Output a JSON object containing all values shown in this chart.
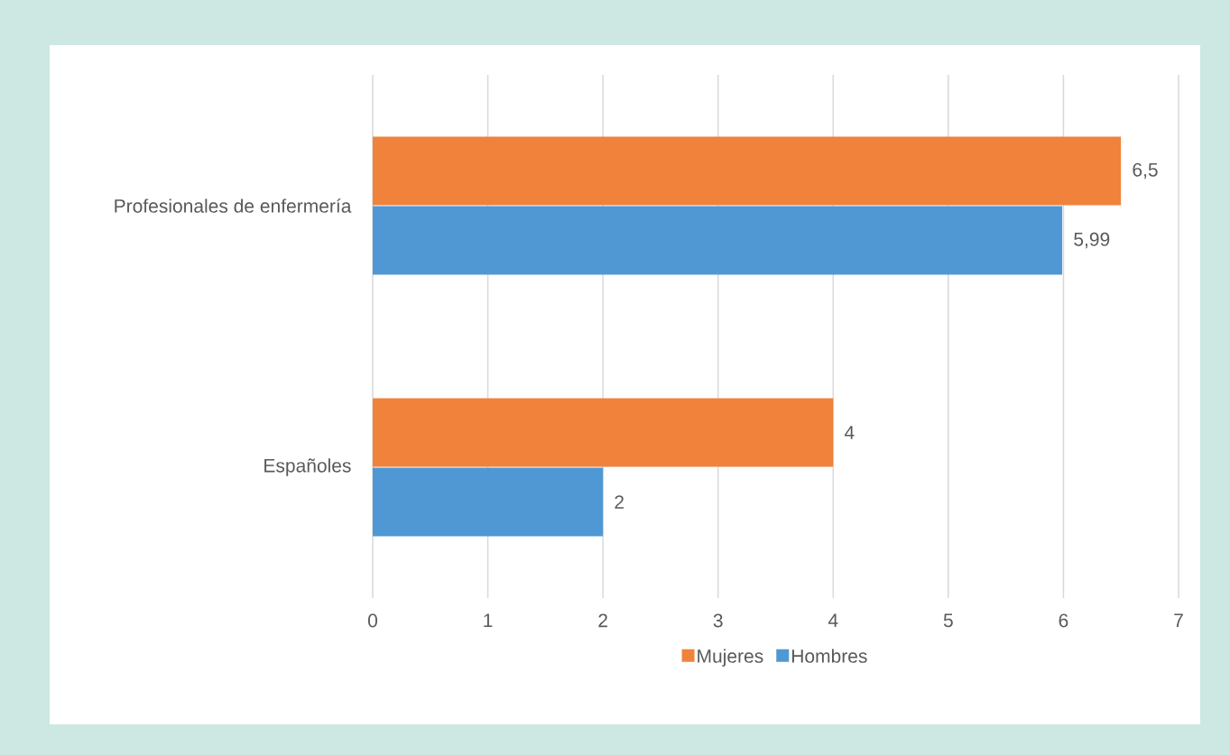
{
  "chart_data": {
    "type": "bar",
    "orientation": "horizontal",
    "categories": [
      "Profesionales de enfermería",
      "Españoles"
    ],
    "series": [
      {
        "name": "Mujeres",
        "color": "#f0823c",
        "values": [
          6.5,
          4
        ],
        "value_labels": [
          "6,5",
          "4"
        ]
      },
      {
        "name": "Hombres",
        "color": "#4f98d3",
        "values": [
          5.99,
          2
        ],
        "value_labels": [
          "5,99",
          "2"
        ]
      }
    ],
    "xlim": [
      0,
      7
    ],
    "xticks": [
      0,
      1,
      2,
      3,
      4,
      5,
      6,
      7
    ],
    "grid": "x",
    "legend": "bottom"
  }
}
